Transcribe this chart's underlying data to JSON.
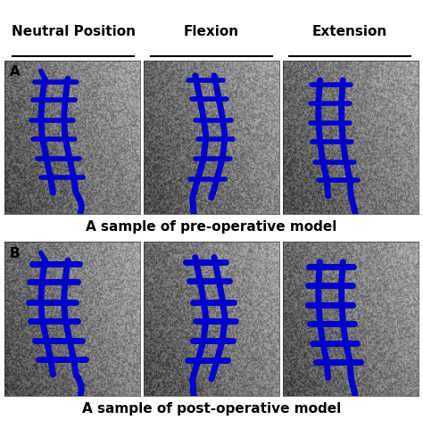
{
  "col_headers": [
    "Neutral Position",
    "Flexion",
    "Extension"
  ],
  "row_labels": [
    "A",
    "B"
  ],
  "row_captions": [
    "A sample of pre-operative model",
    "A sample of post-operative model"
  ],
  "header_fontsize": 11,
  "label_fontsize": 11,
  "caption_fontsize": 11,
  "bg_color": "#ffffff",
  "text_color": "#000000",
  "blue_color": "#0000CC",
  "grid_rows": 2,
  "grid_cols": 3
}
